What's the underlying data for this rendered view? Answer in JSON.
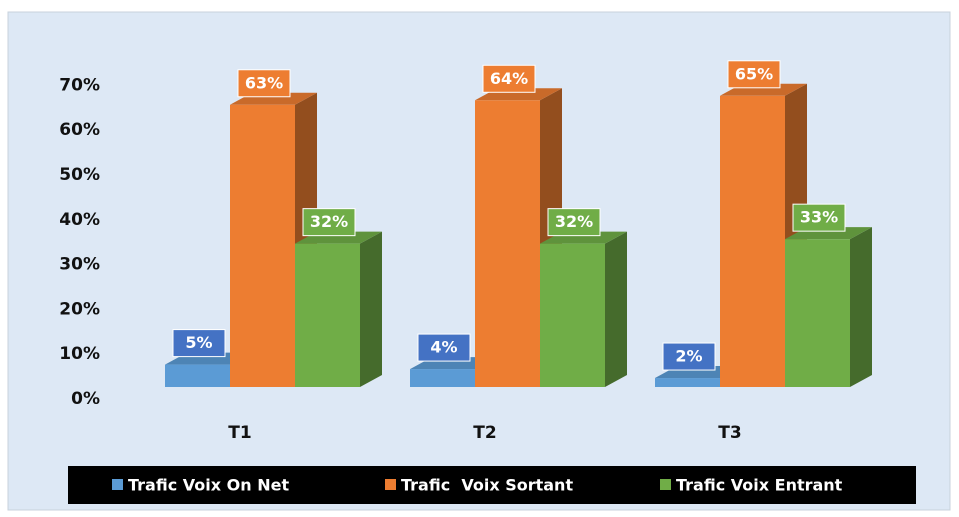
{
  "chart_data": {
    "type": "bar3d",
    "categories": [
      "T1",
      "T2",
      "T3"
    ],
    "series": [
      {
        "name": "Trafic Voix On Net",
        "color": "#5b9bd5",
        "label_color": "#4472c4",
        "values": [
          5,
          4,
          2
        ],
        "value_labels": [
          "5%",
          "4%",
          "2%"
        ]
      },
      {
        "name": "Trafic  Voix Sortant",
        "color": "#ed7d31",
        "label_color": "#ed7d31",
        "values": [
          63,
          64,
          65
        ],
        "value_labels": [
          "63%",
          "64%",
          "65%"
        ]
      },
      {
        "name": "Trafic Voix Entrant",
        "color": "#70ad47",
        "label_color": "#70ad47",
        "values": [
          32,
          32,
          33
        ],
        "value_labels": [
          "32%",
          "32%",
          "33%"
        ]
      }
    ],
    "ylim": [
      0,
      70
    ],
    "yticks": [
      {
        "value": 0,
        "label": "0%"
      },
      {
        "value": 10,
        "label": "10%"
      },
      {
        "value": 20,
        "label": "20%"
      },
      {
        "value": 30,
        "label": "30%"
      },
      {
        "value": 40,
        "label": "40%"
      },
      {
        "value": 50,
        "label": "50%"
      },
      {
        "value": 60,
        "label": "60%"
      },
      {
        "value": 70,
        "label": "70%"
      }
    ],
    "legend": "bottom"
  }
}
